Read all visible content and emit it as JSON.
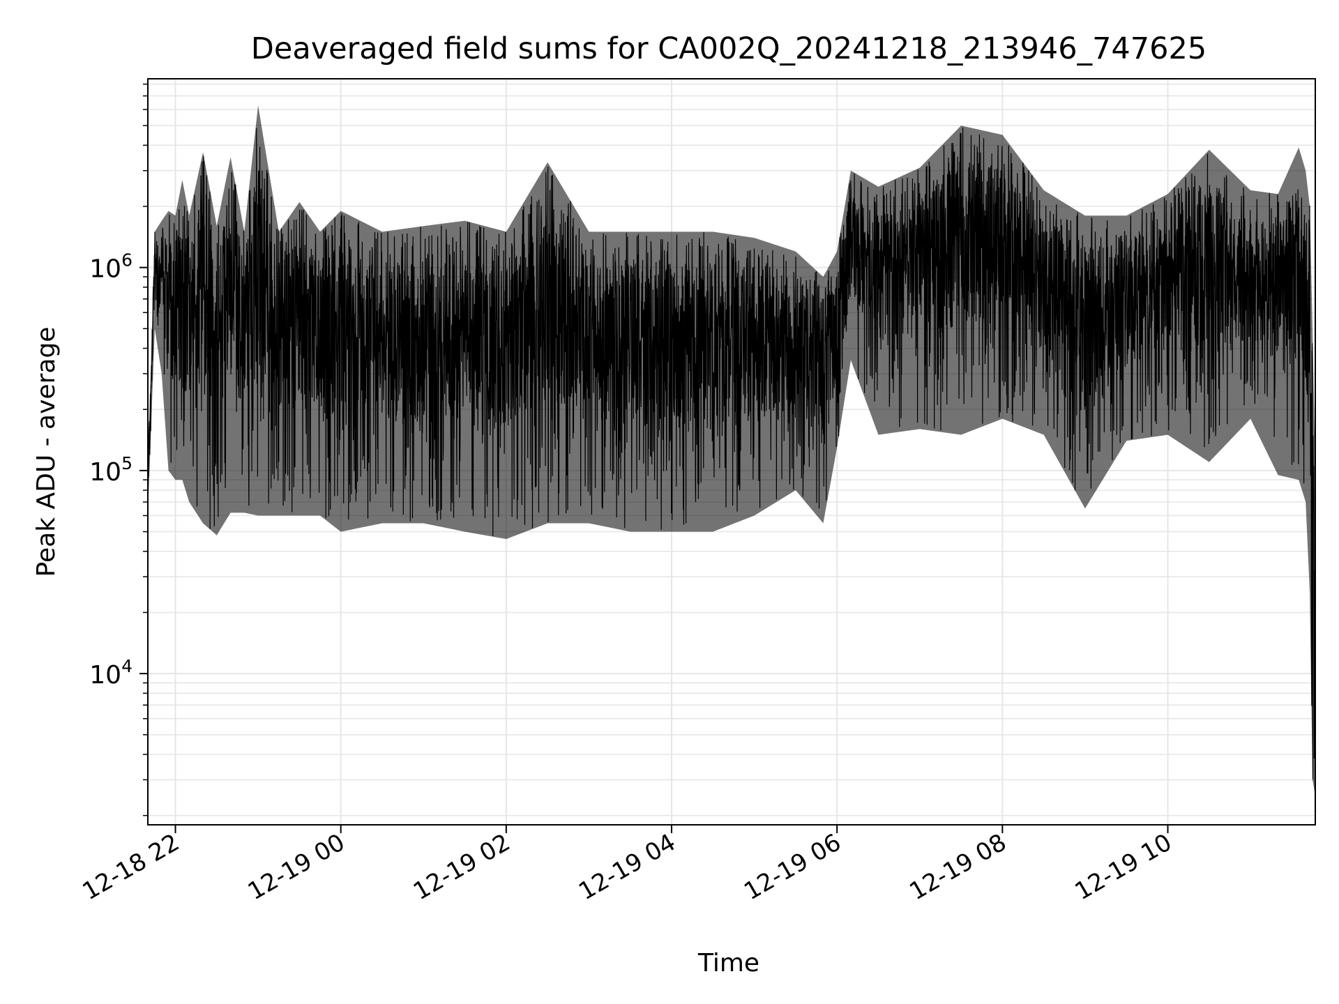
{
  "chart_data": {
    "type": "line",
    "title": "Deaveraged field sums for CA002Q_20241218_213946_747625",
    "xlabel": "Time",
    "ylabel": "Peak ADU - average",
    "xlim": [
      "2024-12-18T21:40",
      "2024-12-19T11:47"
    ],
    "ylim": [
      1800,
      8500000
    ],
    "yscale": "log",
    "grid": true,
    "line_color": "#000000",
    "grid_color": "#e6e6e6",
    "x_ticks": [
      {
        "value": "2024-12-18T22:00",
        "label": "12-18 22"
      },
      {
        "value": "2024-12-19T00:00",
        "label": "12-19 00"
      },
      {
        "value": "2024-12-19T02:00",
        "label": "12-19 02"
      },
      {
        "value": "2024-12-19T04:00",
        "label": "12-19 04"
      },
      {
        "value": "2024-12-19T06:00",
        "label": "12-19 06"
      },
      {
        "value": "2024-12-19T08:00",
        "label": "12-19 08"
      },
      {
        "value": "2024-12-19T10:00",
        "label": "12-19 10"
      }
    ],
    "y_ticks": [
      {
        "value": 10000,
        "base": "10",
        "exp": "4"
      },
      {
        "value": 100000,
        "base": "10",
        "exp": "5"
      },
      {
        "value": 1000000,
        "base": "10",
        "exp": "6"
      }
    ],
    "series": [
      {
        "x": [
          "2024-12-18T21:40",
          "2024-12-18T21:45",
          "2024-12-18T21:50",
          "2024-12-18T21:55",
          "2024-12-18T22:00",
          "2024-12-18T22:05",
          "2024-12-18T22:10",
          "2024-12-18T22:20",
          "2024-12-18T22:30",
          "2024-12-18T22:40",
          "2024-12-18T22:50",
          "2024-12-18T23:00",
          "2024-12-18T23:15",
          "2024-12-18T23:30",
          "2024-12-18T23:45",
          "2024-12-19T00:00",
          "2024-12-19T00:30",
          "2024-12-19T01:00",
          "2024-12-19T01:30",
          "2024-12-19T02:00",
          "2024-12-19T02:30",
          "2024-12-19T03:00",
          "2024-12-19T03:30",
          "2024-12-19T04:00",
          "2024-12-19T04:30",
          "2024-12-19T05:00",
          "2024-12-19T05:30",
          "2024-12-19T05:50",
          "2024-12-19T06:00",
          "2024-12-19T06:10",
          "2024-12-19T06:30",
          "2024-12-19T07:00",
          "2024-12-19T07:30",
          "2024-12-19T08:00",
          "2024-12-19T08:30",
          "2024-12-19T09:00",
          "2024-12-19T09:30",
          "2024-12-19T10:00",
          "2024-12-19T10:30",
          "2024-12-19T11:00",
          "2024-12-19T11:20",
          "2024-12-19T11:35",
          "2024-12-19T11:40",
          "2024-12-19T11:43",
          "2024-12-19T11:45",
          "2024-12-19T11:47"
        ],
        "high": [
          100000,
          1500000,
          1700000,
          1900000,
          1800000,
          2700000,
          1800000,
          3700000,
          1600000,
          3500000,
          1500000,
          6300000,
          1500000,
          2100000,
          1500000,
          1900000,
          1500000,
          1600000,
          1700000,
          1500000,
          3300000,
          1500000,
          1500000,
          1500000,
          1500000,
          1400000,
          1200000,
          900000,
          1200000,
          3000000,
          2500000,
          3100000,
          5000000,
          4500000,
          2400000,
          1800000,
          1800000,
          2300000,
          3800000,
          2400000,
          2300000,
          3900000,
          3000000,
          2000000,
          500000,
          100000
        ],
        "low": [
          60000,
          500000,
          300000,
          100000,
          90000,
          90000,
          70000,
          55000,
          48000,
          62000,
          62000,
          60000,
          60000,
          60000,
          60000,
          50000,
          55000,
          55000,
          50000,
          46000,
          55000,
          55000,
          50000,
          50000,
          50000,
          60000,
          80000,
          55000,
          130000,
          350000,
          150000,
          160000,
          150000,
          180000,
          150000,
          65000,
          140000,
          150000,
          110000,
          180000,
          95000,
          90000,
          70000,
          25000,
          3000,
          2500
        ]
      }
    ]
  }
}
